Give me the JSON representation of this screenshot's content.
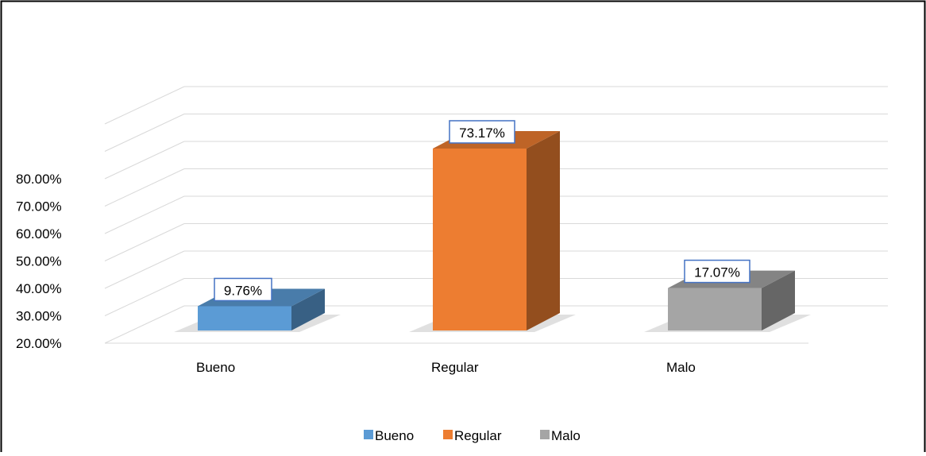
{
  "chart_data": {
    "type": "bar",
    "categories": [
      "Bueno",
      "Regular",
      "Malo"
    ],
    "values": [
      9.76,
      73.17,
      17.07
    ],
    "data_labels": [
      "9.76%",
      "73.17%",
      "17.07%"
    ],
    "y_ticks": [
      "20.00%",
      "30.00%",
      "40.00%",
      "50.00%",
      "60.00%",
      "70.00%",
      "80.00%"
    ],
    "ylim": [
      0,
      80
    ],
    "grid": true,
    "legend": {
      "placement": "bottom",
      "entries": [
        "Bueno",
        "Regular",
        "Malo"
      ]
    },
    "title": "",
    "xlabel": "",
    "ylabel": ""
  },
  "colors": {
    "Bueno": "#5b9bd5",
    "Regular": "#ed7d31",
    "Malo": "#a5a5a5",
    "label_border": "#4472c4"
  }
}
